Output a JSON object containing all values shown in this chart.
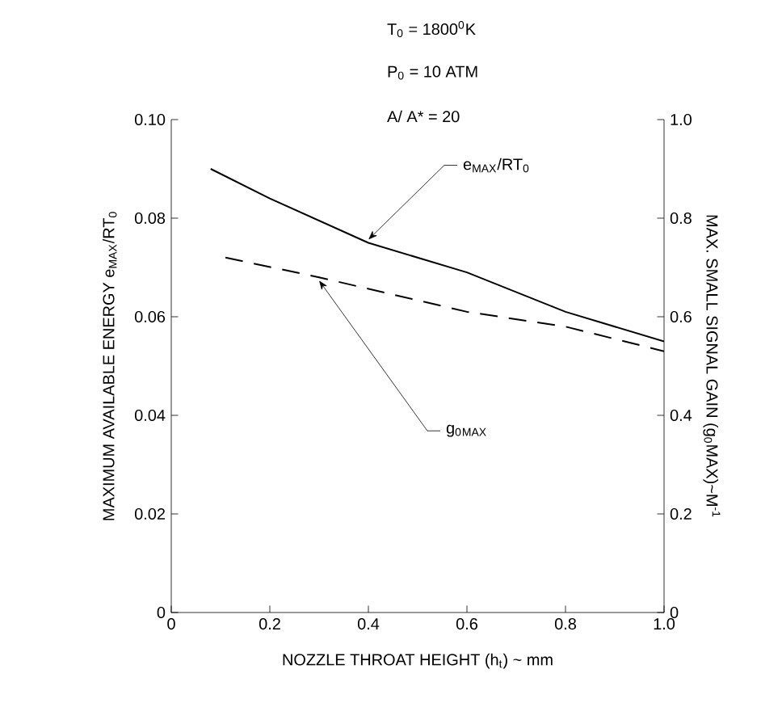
{
  "chart_data": {
    "type": "line",
    "annotations": [
      "T$_{0}$ = 1800$^{0}$K",
      "P$_{0}$ = 10 ATM",
      "A/ A* = 20"
    ],
    "xlabel": "NOZZLE THROAT HEIGHT (h$_{t}$) ~ mm",
    "ylabel": "MAXIMUM AVAILABLE ENERGY e$_{MAX}$/RT$_{0}$",
    "y2label": "MAX. SMALL SIGNAL GAIN (g$_{0}$MAX)~M$^{-1}$",
    "xlim": [
      0,
      1.0
    ],
    "ylim": [
      0,
      0.1
    ],
    "y2lim": [
      0,
      1.0
    ],
    "xticks": [
      0,
      0.2,
      0.4,
      0.6,
      0.8,
      {
        "value": 1.0,
        "label": "1.0"
      }
    ],
    "yticks": [
      0,
      0.02,
      0.04,
      0.06,
      0.08,
      {
        "value": 0.1,
        "label": "0.10"
      }
    ],
    "y2ticks": [
      0,
      0.2,
      0.4,
      0.6,
      0.8,
      {
        "value": 1.0,
        "label": "1.0"
      }
    ],
    "grid": false,
    "series": [
      {
        "name": "e$_{MAX}$/RT$_{0}$",
        "color": "#000000",
        "line_style": "solid",
        "x": [
          0.08,
          0.2,
          0.4,
          0.6,
          0.8,
          1.0
        ],
        "values": [
          0.09,
          0.084,
          0.075,
          0.069,
          0.061,
          0.055
        ]
      },
      {
        "name": "g$_{0}$$_{MAX}$",
        "color": "#000000",
        "line_style": "dashed",
        "axis": "y2",
        "x": [
          0.11,
          0.3,
          0.6,
          0.8,
          1.0
        ],
        "values": [
          0.72,
          0.68,
          0.61,
          0.58,
          0.53
        ]
      }
    ]
  }
}
